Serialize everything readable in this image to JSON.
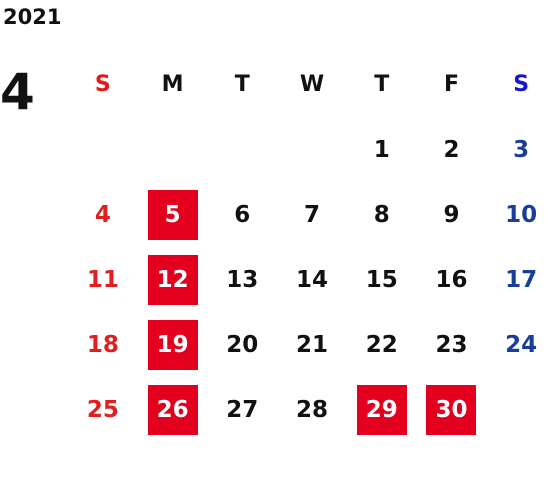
{
  "calendar": {
    "year": "2021",
    "month": "4",
    "weekdays": [
      "S",
      "M",
      "T",
      "W",
      "T",
      "F",
      "S"
    ],
    "weeks": [
      [
        "",
        "",
        "",
        "",
        "1",
        "2",
        "3"
      ],
      [
        "4",
        "5",
        "6",
        "7",
        "8",
        "9",
        "10"
      ],
      [
        "11",
        "12",
        "13",
        "14",
        "15",
        "16",
        "17"
      ],
      [
        "18",
        "19",
        "20",
        "21",
        "22",
        "23",
        "24"
      ],
      [
        "25",
        "26",
        "27",
        "28",
        "29",
        "30",
        ""
      ]
    ],
    "highlighted_days": [
      "5",
      "12",
      "19",
      "26",
      "29",
      "30"
    ],
    "colors": {
      "sunday": "#e02020",
      "saturday": "#1a3d99",
      "highlight_bg": "#e2001e",
      "highlight_text": "#ffffff",
      "default_text": "#111111"
    }
  }
}
